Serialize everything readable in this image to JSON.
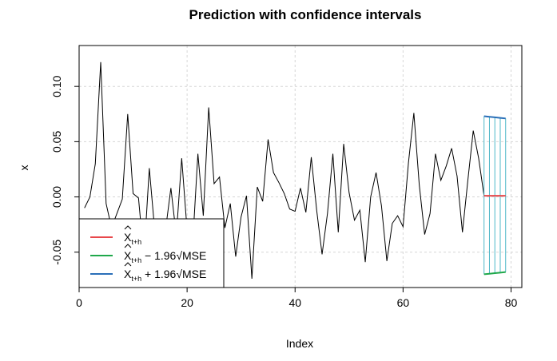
{
  "chart_data": {
    "type": "line",
    "title": "Prediction with confidence intervals",
    "xlabel": "Index",
    "ylabel": "x",
    "xlim": [
      0,
      82
    ],
    "ylim": [
      -0.082,
      0.137
    ],
    "xticks": [
      0,
      20,
      40,
      60,
      80
    ],
    "yticks": [
      -0.05,
      0.0,
      0.05,
      0.1
    ],
    "xtick_labels": [
      "0",
      "20",
      "40",
      "60",
      "80"
    ],
    "ytick_labels": [
      "-0.05",
      "0.00",
      "0.05",
      "0.10"
    ],
    "grid": true,
    "legend_position": "bottom-left",
    "series": [
      {
        "key": "observed",
        "color": "#000000",
        "x": [
          1,
          2,
          3,
          4,
          5,
          6,
          7,
          8,
          9,
          10,
          11,
          12,
          13,
          14,
          15,
          16,
          17,
          18,
          19,
          20,
          21,
          22,
          23,
          24,
          25,
          26,
          27,
          28,
          29,
          30,
          31,
          32,
          33,
          34,
          35,
          36,
          37,
          38,
          39,
          40,
          41,
          42,
          43,
          44,
          45,
          46,
          47,
          48,
          49,
          50,
          51,
          52,
          53,
          54,
          55,
          56,
          57,
          58,
          59,
          60,
          61,
          62,
          63,
          64,
          65,
          66,
          67,
          68,
          69,
          70,
          71,
          72,
          73,
          74,
          75
        ],
        "values": [
          -0.01,
          0.0,
          0.03,
          0.122,
          -0.006,
          -0.028,
          -0.015,
          -0.002,
          0.075,
          0.003,
          -0.001,
          -0.055,
          0.026,
          -0.03,
          -0.04,
          -0.03,
          0.008,
          -0.035,
          0.035,
          -0.03,
          -0.045,
          0.039,
          -0.017,
          0.081,
          0.012,
          0.018,
          -0.028,
          -0.006,
          -0.054,
          -0.018,
          0.001,
          -0.074,
          0.009,
          -0.004,
          0.052,
          0.022,
          0.013,
          0.003,
          -0.011,
          -0.013,
          0.008,
          -0.014,
          0.036,
          -0.012,
          -0.052,
          -0.015,
          0.039,
          -0.032,
          0.048,
          0.004,
          -0.021,
          -0.012,
          -0.059,
          0.0,
          0.022,
          -0.008,
          -0.058,
          -0.024,
          -0.017,
          -0.027,
          0.031,
          0.076,
          0.011,
          -0.034,
          -0.015,
          0.039,
          0.015,
          0.028,
          0.044,
          0.019,
          -0.032,
          0.015,
          0.06,
          0.035,
          0.001
        ]
      },
      {
        "key": "prediction",
        "color": "#E8484B",
        "x": [
          75,
          76,
          77,
          78,
          79
        ],
        "values": [
          0.001,
          0.001,
          0.001,
          0.001,
          0.001
        ]
      },
      {
        "key": "lower",
        "color": "#1FA84B",
        "x": [
          75,
          76,
          77,
          78,
          79
        ],
        "values": [
          -0.07,
          -0.0695,
          -0.069,
          -0.0685,
          -0.068
        ]
      },
      {
        "key": "upper",
        "color": "#2A6FB8",
        "x": [
          75,
          76,
          77,
          78,
          79
        ],
        "values": [
          0.073,
          0.0725,
          0.072,
          0.0715,
          0.071
        ]
      }
    ],
    "interval_lines_color": "#4DB8C8",
    "legend": [
      {
        "key": "prediction",
        "color": "#E8484B",
        "main": "X",
        "sub": "t+h",
        "suffix": ""
      },
      {
        "key": "lower",
        "color": "#1FA84B",
        "main": "X",
        "sub": "t+h",
        "suffix": " − 1.96√MSE"
      },
      {
        "key": "upper",
        "color": "#2A6FB8",
        "main": "X",
        "sub": "t+h",
        "suffix": " + 1.96√MSE"
      }
    ]
  }
}
